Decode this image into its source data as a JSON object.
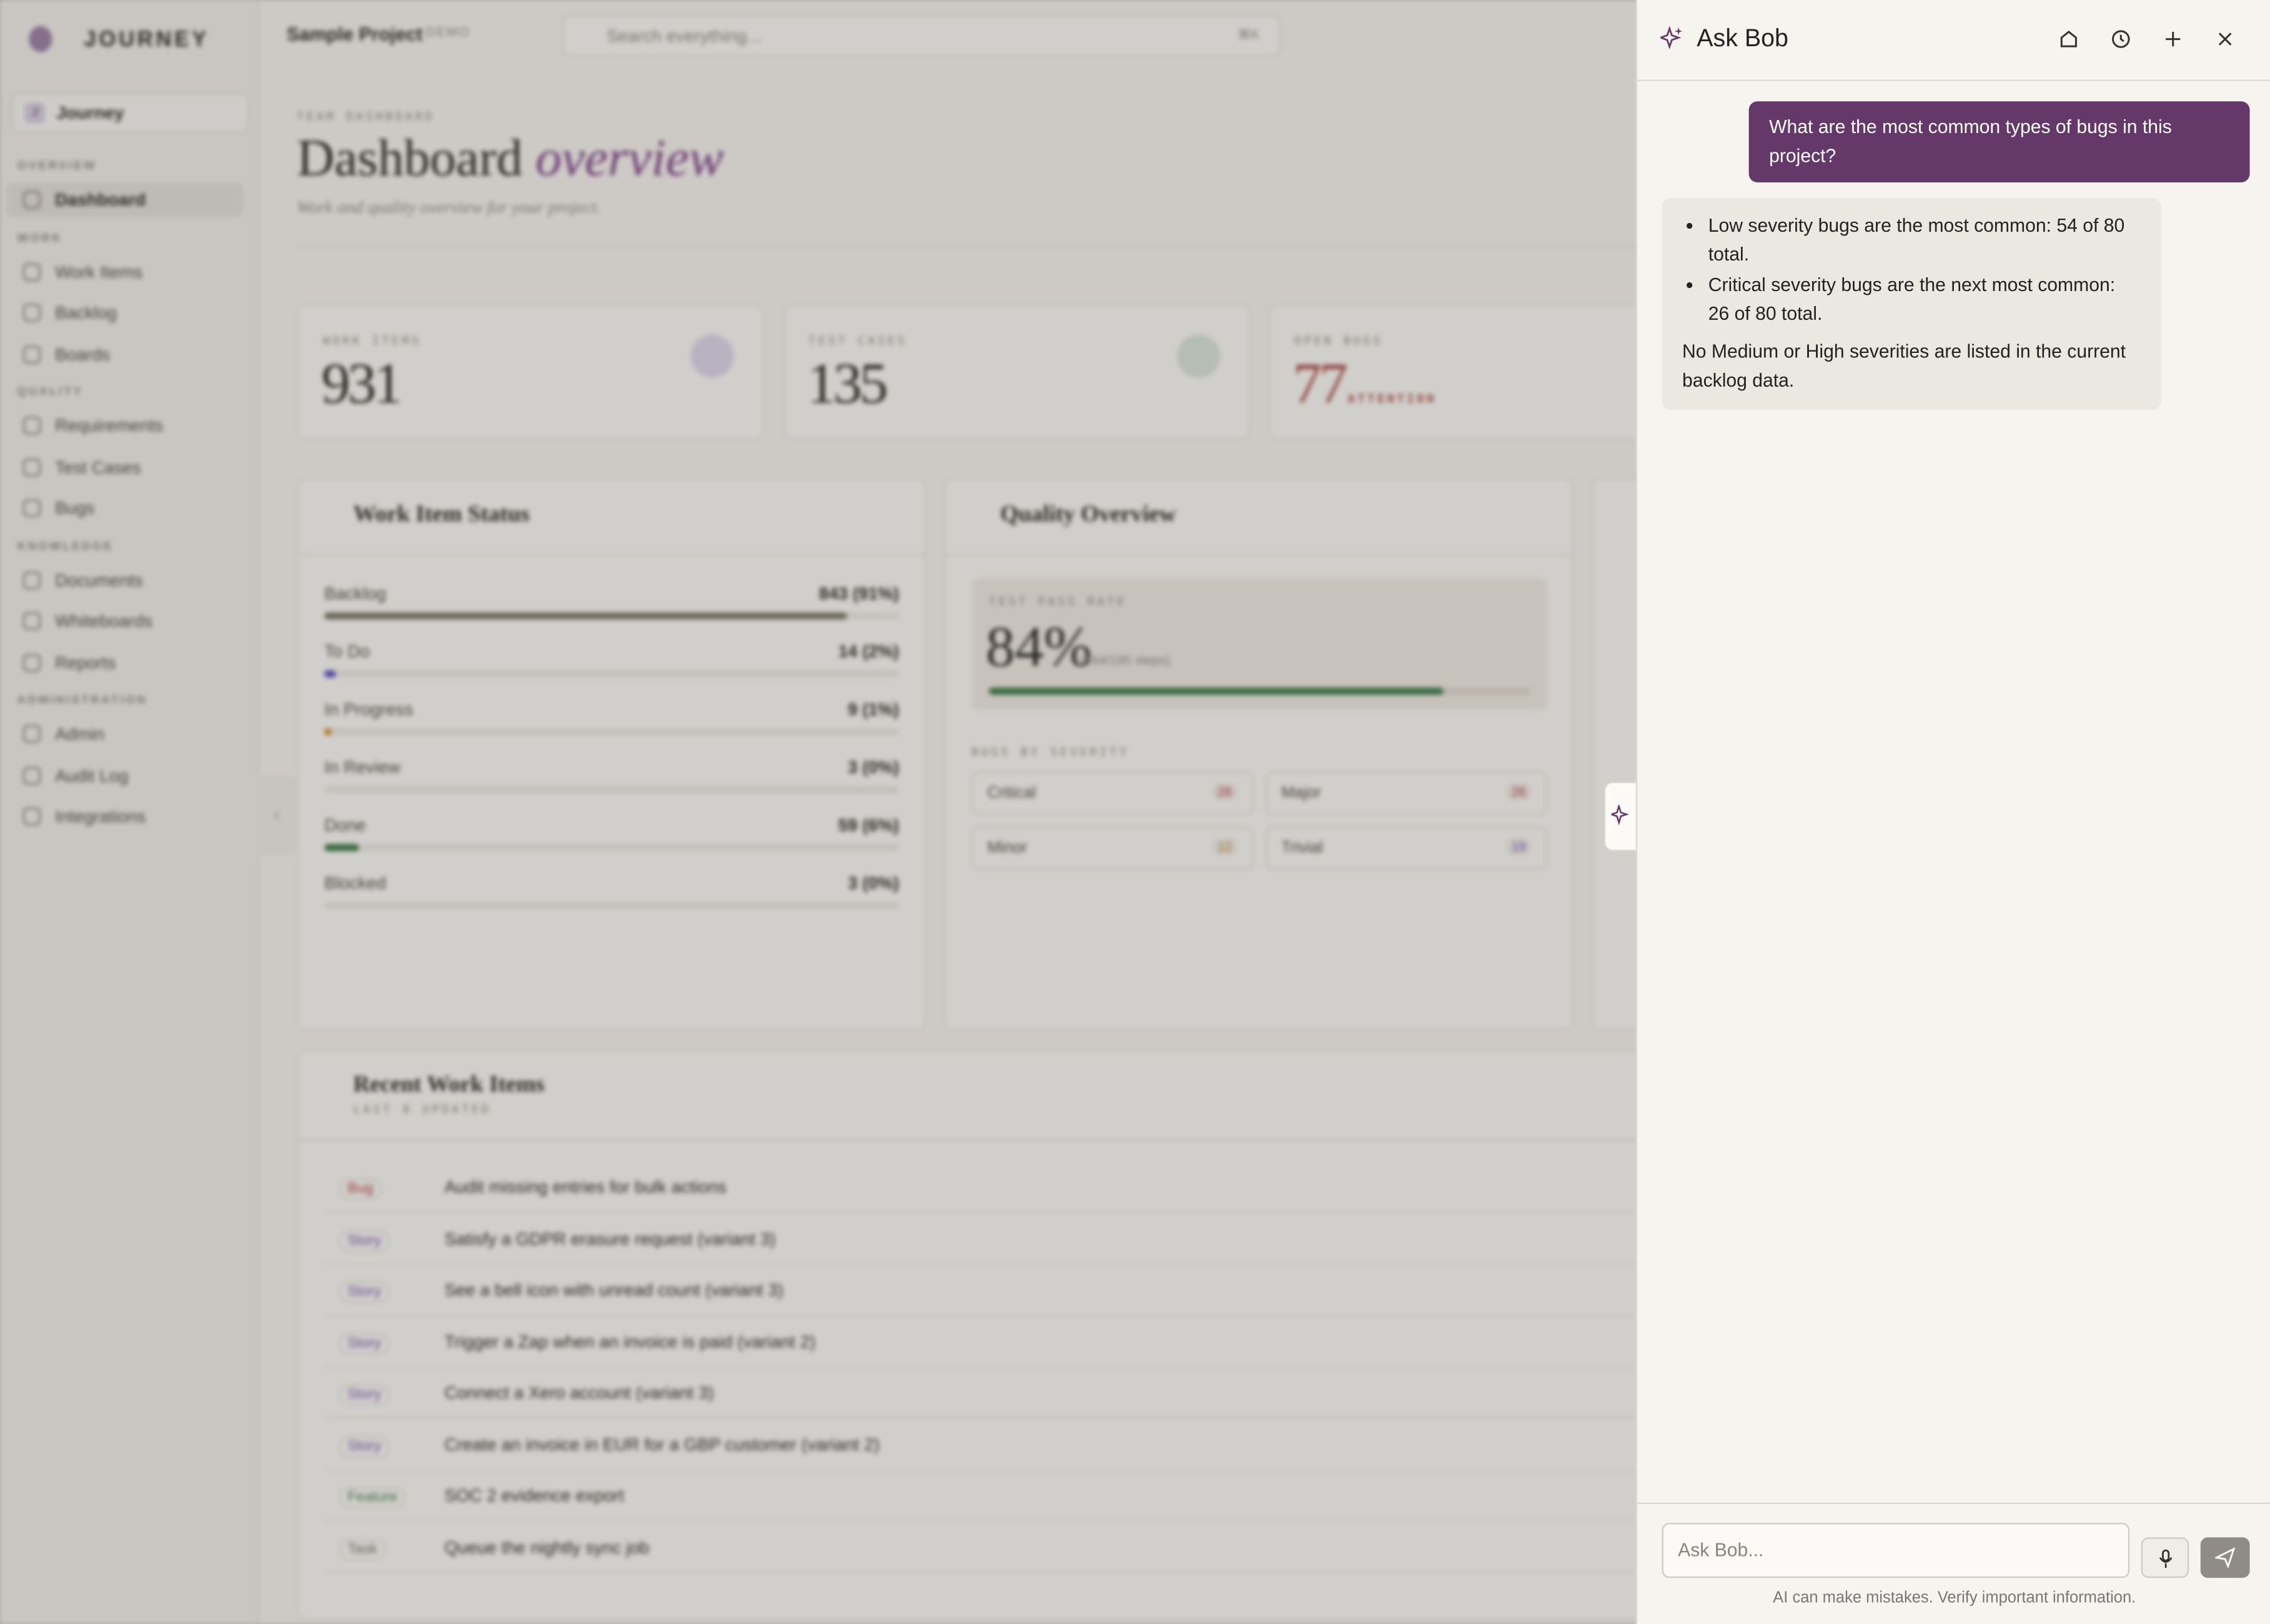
{
  "sidebar": {
    "brand": "JOURNEY",
    "workspace": "Journey",
    "workspace_initial": "J",
    "sections": [
      {
        "title": "OVERVIEW",
        "items": [
          "Dashboard"
        ]
      },
      {
        "title": "WORK",
        "items": [
          "Work Items",
          "Backlog",
          "Boards"
        ]
      },
      {
        "title": "QUALITY",
        "items": [
          "Requirements",
          "Test Cases",
          "Bugs"
        ]
      },
      {
        "title": "KNOWLEDGE",
        "items": [
          "Documents",
          "Whiteboards",
          "Reports"
        ]
      },
      {
        "title": "ADMINISTRATION",
        "items": [
          "Admin",
          "Audit Log",
          "Integrations"
        ]
      }
    ]
  },
  "topbar": {
    "project": "Sample Project",
    "badge": "DEMO",
    "search": "Search everything...",
    "shortcut": "⌘K"
  },
  "dashboard": {
    "eyebrow": "TEAM DASHBOARD",
    "title": "Dashboard",
    "title_em": "overview",
    "subtitle": "Work and quality overview for your project.",
    "stats": [
      {
        "label": "WORK ITEMS",
        "value": "931"
      },
      {
        "label": "TEST CASES",
        "value": "135"
      },
      {
        "label": "OPEN BUGS",
        "value": "77",
        "note": "ATTENTION"
      }
    ],
    "work_status": {
      "title": "Work Item Status",
      "rows": [
        {
          "label": "Backlog",
          "value": "843 (91%)",
          "percent": 91,
          "color": "#7b7766"
        },
        {
          "label": "To Do",
          "value": "14 (2%)",
          "percent": 2,
          "color": "#5b4fc7"
        },
        {
          "label": "In Progress",
          "value": "9 (1%)",
          "percent": 1,
          "color": "#d4891f"
        },
        {
          "label": "In Review",
          "value": "3 (0%)",
          "percent": 0,
          "color": "#7b7766"
        },
        {
          "label": "Done",
          "value": "59 (6%)",
          "percent": 6,
          "color": "#3d7a45"
        },
        {
          "label": "Blocked",
          "value": "3 (0%)",
          "percent": 0,
          "color": "#b33a3a"
        }
      ]
    },
    "quality": {
      "title": "Quality Overview",
      "pass_label": "TEST PASS RATE",
      "pass_rate": "84%",
      "pass_percent": 84,
      "pass_detail": "(164/195 steps)",
      "severity_title": "BUGS BY SEVERITY",
      "severities": [
        {
          "label": "Critical",
          "count": "26",
          "color": "#b33a3a"
        },
        {
          "label": "Major",
          "count": "26",
          "color": "#b33a3a"
        },
        {
          "label": "Minor",
          "count": "12",
          "color": "#b98a1f"
        },
        {
          "label": "Trivial",
          "count": "19",
          "color": "#6b56b8"
        }
      ]
    },
    "recent": {
      "title": "Recent Work Items",
      "subtitle": "LAST 8 UPDATED",
      "items": [
        {
          "type": "Bug",
          "title": "Audit missing entries for bulk actions",
          "color": "#b33a3a"
        },
        {
          "type": "Story",
          "title": "Satisfy a GDPR erasure request (variant 3)",
          "color": "#7b4fa8"
        },
        {
          "type": "Story",
          "title": "See a bell icon with unread count (variant 3)",
          "color": "#7b4fa8"
        },
        {
          "type": "Story",
          "title": "Trigger a Zap when an invoice is paid (variant 2)",
          "color": "#7b4fa8"
        },
        {
          "type": "Story",
          "title": "Connect a Xero account (variant 3)",
          "color": "#7b4fa8"
        },
        {
          "type": "Story",
          "title": "Create an invoice in EUR for a GBP customer (variant 2)",
          "color": "#7b4fa8"
        },
        {
          "type": "Feature",
          "title": "SOC 2 evidence export",
          "color": "#3d7a45"
        },
        {
          "type": "Task",
          "title": "Queue the nightly sync job",
          "color": "#6f6b63"
        }
      ]
    }
  },
  "chat": {
    "title": "Ask Bob",
    "user_message": "What are the most common types of bugs in this project?",
    "reply_bullets": [
      "Low severity bugs are the most common: 54 of 80 total.",
      "Critical severity bugs are the next most common: 26 of 80 total."
    ],
    "reply_text": "No Medium or High severities are listed in the current backlog data.",
    "input_placeholder": "Ask Bob...",
    "disclaimer": "AI can make mistakes. Verify important information."
  }
}
